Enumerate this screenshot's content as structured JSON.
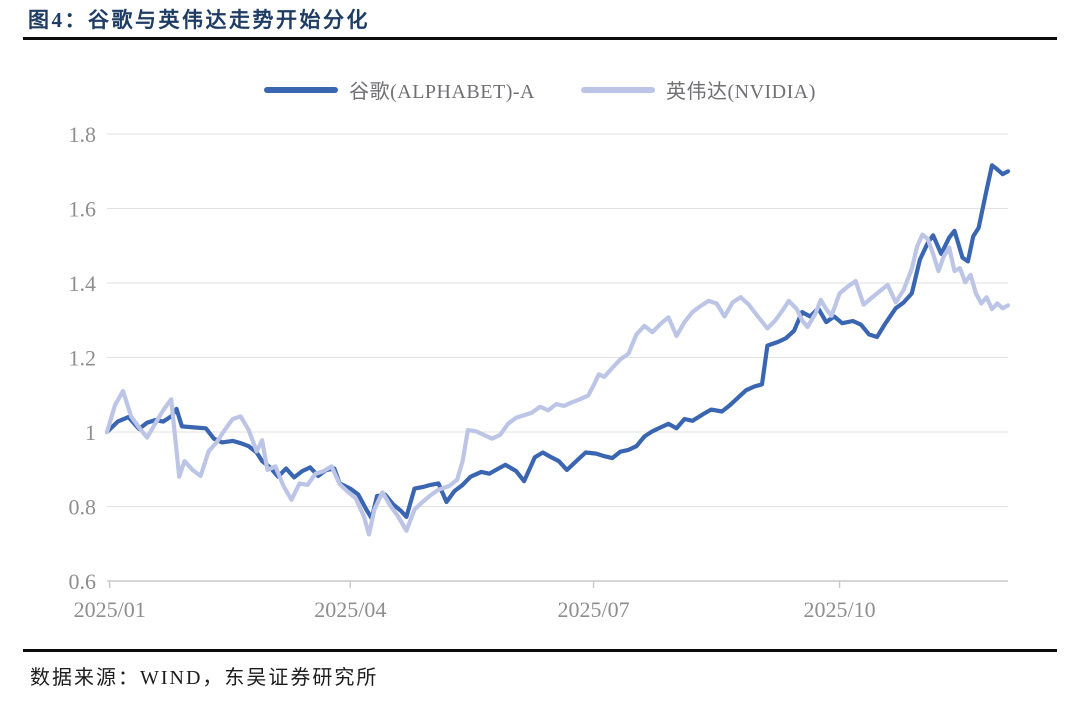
{
  "figure": {
    "title": "图4：谷歌与英伟达走势开始分化",
    "source": "数据来源：WIND，东吴证券研究所"
  },
  "style": {
    "title_color": "#1E3C64",
    "rule_color": "#0C0C0C",
    "legend_text_color": "#6F6F74",
    "axis_label_color": "#8E8E8E",
    "gridline_color": "#E2E2E2",
    "axis_line_color": "#C8C8C8",
    "google_line_color": "#3A66B1",
    "nvidia_line_color": "#BDC5E6"
  },
  "chart_data": {
    "type": "line",
    "title": "图4：谷歌与英伟达走势开始分化",
    "xlabel": "",
    "ylabel": "",
    "grid": true,
    "legend_position": "top",
    "ylim": [
      0.6,
      1.8
    ],
    "yticks": [
      1.8,
      1.6,
      1.4,
      1.2,
      1,
      0.8,
      0.6
    ],
    "ytick_labels": [
      "1.8",
      "1.6",
      "1.4",
      "1.2",
      "1",
      "0.8",
      "0.6"
    ],
    "xtick_labels": [
      "2025/01",
      "2025/04",
      "2025/07",
      "2025/10"
    ],
    "xtick_dates": [
      "2025/01/01",
      "2025/04/01",
      "2025/07/01",
      "2025/10/01"
    ],
    "x_start": "2024/12/31",
    "x_end": "2025/12/03",
    "series": [
      {
        "name": "谷歌(ALPHABET)-A",
        "color": "#3A66B1",
        "points": [
          [
            "2024/12/31",
            1.0
          ],
          [
            "2025/01/04",
            1.028
          ],
          [
            "2025/01/08",
            1.04
          ],
          [
            "2025/01/12",
            1.008
          ],
          [
            "2025/01/15",
            1.025
          ],
          [
            "2025/01/18",
            1.032
          ],
          [
            "2025/01/21",
            1.028
          ],
          [
            "2025/01/24",
            1.042
          ],
          [
            "2025/01/26",
            1.062
          ],
          [
            "2025/01/28",
            1.015
          ],
          [
            "2025/02/02",
            1.012
          ],
          [
            "2025/02/06",
            1.01
          ],
          [
            "2025/02/09",
            0.982
          ],
          [
            "2025/02/12",
            0.972
          ],
          [
            "2025/02/16",
            0.976
          ],
          [
            "2025/02/19",
            0.97
          ],
          [
            "2025/02/22",
            0.962
          ],
          [
            "2025/02/25",
            0.945
          ],
          [
            "2025/02/27",
            0.922
          ],
          [
            "2025/03/02",
            0.905
          ],
          [
            "2025/03/05",
            0.88
          ],
          [
            "2025/03/08",
            0.902
          ],
          [
            "2025/03/11",
            0.878
          ],
          [
            "2025/03/14",
            0.895
          ],
          [
            "2025/03/17",
            0.905
          ],
          [
            "2025/03/20",
            0.882
          ],
          [
            "2025/03/23",
            0.898
          ],
          [
            "2025/03/26",
            0.902
          ],
          [
            "2025/03/28",
            0.862
          ],
          [
            "2025/04/01",
            0.848
          ],
          [
            "2025/04/04",
            0.832
          ],
          [
            "2025/04/07",
            0.792
          ],
          [
            "2025/04/09",
            0.768
          ],
          [
            "2025/04/11",
            0.828
          ],
          [
            "2025/04/14",
            0.832
          ],
          [
            "2025/04/17",
            0.806
          ],
          [
            "2025/04/20",
            0.788
          ],
          [
            "2025/04/22",
            0.772
          ],
          [
            "2025/04/25",
            0.848
          ],
          [
            "2025/04/28",
            0.852
          ],
          [
            "2025/05/01",
            0.858
          ],
          [
            "2025/05/04",
            0.862
          ],
          [
            "2025/05/07",
            0.812
          ],
          [
            "2025/05/10",
            0.842
          ],
          [
            "2025/05/13",
            0.858
          ],
          [
            "2025/05/16",
            0.88
          ],
          [
            "2025/05/20",
            0.893
          ],
          [
            "2025/05/23",
            0.888
          ],
          [
            "2025/05/26",
            0.9
          ],
          [
            "2025/05/29",
            0.912
          ],
          [
            "2025/06/02",
            0.895
          ],
          [
            "2025/06/05",
            0.868
          ],
          [
            "2025/06/09",
            0.932
          ],
          [
            "2025/06/12",
            0.945
          ],
          [
            "2025/06/15",
            0.933
          ],
          [
            "2025/06/18",
            0.922
          ],
          [
            "2025/06/21",
            0.898
          ],
          [
            "2025/06/25",
            0.925
          ],
          [
            "2025/06/28",
            0.945
          ],
          [
            "2025/07/02",
            0.942
          ],
          [
            "2025/07/05",
            0.935
          ],
          [
            "2025/07/08",
            0.93
          ],
          [
            "2025/07/11",
            0.947
          ],
          [
            "2025/07/14",
            0.952
          ],
          [
            "2025/07/17",
            0.962
          ],
          [
            "2025/07/20",
            0.988
          ],
          [
            "2025/07/23",
            1.002
          ],
          [
            "2025/07/26",
            1.012
          ],
          [
            "2025/07/29",
            1.022
          ],
          [
            "2025/08/01",
            1.01
          ],
          [
            "2025/08/04",
            1.035
          ],
          [
            "2025/08/07",
            1.03
          ],
          [
            "2025/08/11",
            1.048
          ],
          [
            "2025/08/14",
            1.06
          ],
          [
            "2025/08/18",
            1.055
          ],
          [
            "2025/08/21",
            1.072
          ],
          [
            "2025/08/24",
            1.092
          ],
          [
            "2025/08/27",
            1.112
          ],
          [
            "2025/08/30",
            1.122
          ],
          [
            "2025/09/02",
            1.128
          ],
          [
            "2025/09/04",
            1.232
          ],
          [
            "2025/09/08",
            1.242
          ],
          [
            "2025/09/11",
            1.252
          ],
          [
            "2025/09/14",
            1.272
          ],
          [
            "2025/09/17",
            1.322
          ],
          [
            "2025/09/20",
            1.31
          ],
          [
            "2025/09/23",
            1.332
          ],
          [
            "2025/09/26",
            1.295
          ],
          [
            "2025/09/29",
            1.31
          ],
          [
            "2025/10/02",
            1.292
          ],
          [
            "2025/10/06",
            1.298
          ],
          [
            "2025/10/09",
            1.288
          ],
          [
            "2025/10/12",
            1.262
          ],
          [
            "2025/10/15",
            1.255
          ],
          [
            "2025/10/18",
            1.29
          ],
          [
            "2025/10/22",
            1.332
          ],
          [
            "2025/10/25",
            1.348
          ],
          [
            "2025/10/28",
            1.372
          ],
          [
            "2025/10/31",
            1.462
          ],
          [
            "2025/11/03",
            1.508
          ],
          [
            "2025/11/05",
            1.528
          ],
          [
            "2025/11/08",
            1.478
          ],
          [
            "2025/11/11",
            1.522
          ],
          [
            "2025/11/13",
            1.54
          ],
          [
            "2025/11/16",
            1.468
          ],
          [
            "2025/11/18",
            1.458
          ],
          [
            "2025/11/20",
            1.525
          ],
          [
            "2025/11/22",
            1.548
          ],
          [
            "2025/11/25",
            1.65
          ],
          [
            "2025/11/27",
            1.716
          ],
          [
            "2025/11/29",
            1.705
          ],
          [
            "2025/12/01",
            1.692
          ],
          [
            "2025/12/03",
            1.7
          ]
        ]
      },
      {
        "name": "英伟达(NVIDIA)",
        "color": "#BDC5E6",
        "points": [
          [
            "2024/12/31",
            1.0
          ],
          [
            "2025/01/03",
            1.072
          ],
          [
            "2025/01/06",
            1.11
          ],
          [
            "2025/01/09",
            1.042
          ],
          [
            "2025/01/12",
            1.012
          ],
          [
            "2025/01/15",
            0.985
          ],
          [
            "2025/01/18",
            1.022
          ],
          [
            "2025/01/21",
            1.058
          ],
          [
            "2025/01/24",
            1.088
          ],
          [
            "2025/01/27",
            0.88
          ],
          [
            "2025/01/29",
            0.922
          ],
          [
            "2025/02/01",
            0.898
          ],
          [
            "2025/02/04",
            0.882
          ],
          [
            "2025/02/07",
            0.948
          ],
          [
            "2025/02/10",
            0.972
          ],
          [
            "2025/02/13",
            1.005
          ],
          [
            "2025/02/16",
            1.035
          ],
          [
            "2025/02/19",
            1.042
          ],
          [
            "2025/02/22",
            1.005
          ],
          [
            "2025/02/25",
            0.948
          ],
          [
            "2025/02/27",
            0.978
          ],
          [
            "2025/03/01",
            0.898
          ],
          [
            "2025/03/04",
            0.908
          ],
          [
            "2025/03/07",
            0.855
          ],
          [
            "2025/03/10",
            0.818
          ],
          [
            "2025/03/13",
            0.862
          ],
          [
            "2025/03/16",
            0.858
          ],
          [
            "2025/03/19",
            0.888
          ],
          [
            "2025/03/22",
            0.895
          ],
          [
            "2025/03/25",
            0.908
          ],
          [
            "2025/03/28",
            0.86
          ],
          [
            "2025/03/31",
            0.84
          ],
          [
            "2025/04/03",
            0.822
          ],
          [
            "2025/04/06",
            0.775
          ],
          [
            "2025/04/08",
            0.725
          ],
          [
            "2025/04/10",
            0.792
          ],
          [
            "2025/04/13",
            0.838
          ],
          [
            "2025/04/16",
            0.802
          ],
          [
            "2025/04/19",
            0.772
          ],
          [
            "2025/04/22",
            0.735
          ],
          [
            "2025/04/25",
            0.792
          ],
          [
            "2025/04/28",
            0.812
          ],
          [
            "2025/05/01",
            0.83
          ],
          [
            "2025/05/04",
            0.845
          ],
          [
            "2025/05/08",
            0.855
          ],
          [
            "2025/05/11",
            0.872
          ],
          [
            "2025/05/13",
            0.922
          ],
          [
            "2025/05/15",
            1.005
          ],
          [
            "2025/05/18",
            1.002
          ],
          [
            "2025/05/21",
            0.992
          ],
          [
            "2025/05/24",
            0.982
          ],
          [
            "2025/05/27",
            0.992
          ],
          [
            "2025/05/30",
            1.022
          ],
          [
            "2025/06/02",
            1.038
          ],
          [
            "2025/06/05",
            1.045
          ],
          [
            "2025/06/08",
            1.052
          ],
          [
            "2025/06/11",
            1.068
          ],
          [
            "2025/06/14",
            1.058
          ],
          [
            "2025/06/17",
            1.075
          ],
          [
            "2025/06/20",
            1.07
          ],
          [
            "2025/06/23",
            1.08
          ],
          [
            "2025/06/26",
            1.088
          ],
          [
            "2025/06/29",
            1.098
          ],
          [
            "2025/07/01",
            1.125
          ],
          [
            "2025/07/03",
            1.155
          ],
          [
            "2025/07/05",
            1.148
          ],
          [
            "2025/07/08",
            1.172
          ],
          [
            "2025/07/11",
            1.195
          ],
          [
            "2025/07/14",
            1.21
          ],
          [
            "2025/07/17",
            1.262
          ],
          [
            "2025/07/20",
            1.285
          ],
          [
            "2025/07/23",
            1.268
          ],
          [
            "2025/07/26",
            1.29
          ],
          [
            "2025/07/29",
            1.308
          ],
          [
            "2025/08/01",
            1.258
          ],
          [
            "2025/08/04",
            1.295
          ],
          [
            "2025/08/07",
            1.322
          ],
          [
            "2025/08/10",
            1.338
          ],
          [
            "2025/08/13",
            1.352
          ],
          [
            "2025/08/16",
            1.345
          ],
          [
            "2025/08/19",
            1.31
          ],
          [
            "2025/08/22",
            1.348
          ],
          [
            "2025/08/25",
            1.362
          ],
          [
            "2025/08/28",
            1.342
          ],
          [
            "2025/09/01",
            1.305
          ],
          [
            "2025/09/04",
            1.278
          ],
          [
            "2025/09/07",
            1.3
          ],
          [
            "2025/09/10",
            1.33
          ],
          [
            "2025/09/12",
            1.352
          ],
          [
            "2025/09/15",
            1.33
          ],
          [
            "2025/09/17",
            1.3
          ],
          [
            "2025/09/19",
            1.282
          ],
          [
            "2025/09/22",
            1.318
          ],
          [
            "2025/09/24",
            1.355
          ],
          [
            "2025/09/26",
            1.33
          ],
          [
            "2025/09/28",
            1.312
          ],
          [
            "2025/10/01",
            1.372
          ],
          [
            "2025/10/04",
            1.39
          ],
          [
            "2025/10/07",
            1.405
          ],
          [
            "2025/10/10",
            1.342
          ],
          [
            "2025/10/13",
            1.36
          ],
          [
            "2025/10/16",
            1.378
          ],
          [
            "2025/10/19",
            1.395
          ],
          [
            "2025/10/22",
            1.348
          ],
          [
            "2025/10/25",
            1.382
          ],
          [
            "2025/10/28",
            1.438
          ],
          [
            "2025/10/30",
            1.498
          ],
          [
            "2025/11/01",
            1.53
          ],
          [
            "2025/11/03",
            1.518
          ],
          [
            "2025/11/05",
            1.478
          ],
          [
            "2025/11/07",
            1.432
          ],
          [
            "2025/11/09",
            1.472
          ],
          [
            "2025/11/11",
            1.495
          ],
          [
            "2025/11/13",
            1.432
          ],
          [
            "2025/11/15",
            1.44
          ],
          [
            "2025/11/17",
            1.402
          ],
          [
            "2025/11/19",
            1.422
          ],
          [
            "2025/11/21",
            1.372
          ],
          [
            "2025/11/23",
            1.345
          ],
          [
            "2025/11/25",
            1.362
          ],
          [
            "2025/11/27",
            1.33
          ],
          [
            "2025/11/29",
            1.345
          ],
          [
            "2025/12/01",
            1.332
          ],
          [
            "2025/12/03",
            1.34
          ]
        ]
      }
    ]
  }
}
